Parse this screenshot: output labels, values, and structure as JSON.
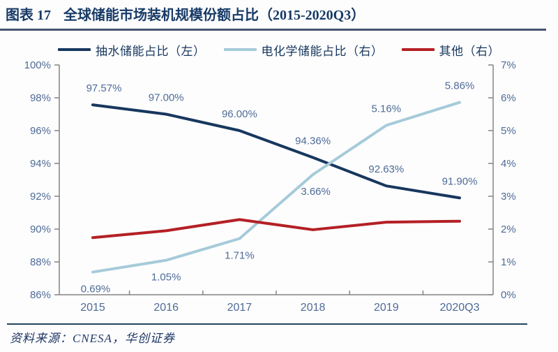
{
  "header": {
    "figure_number": "图表 17",
    "title": "全球储能市场装机规模份额占比（2015-2020Q3）"
  },
  "legend": [
    {
      "id": "pumped-hydro",
      "label": "抽水储能占比（左）",
      "color": "#17375e"
    },
    {
      "id": "electrochemical",
      "label": "电化学储能占比（右）",
      "color": "#a6cbd9"
    },
    {
      "id": "other",
      "label": "其他（右）",
      "color": "#b42025"
    }
  ],
  "footer": {
    "source_note": "资料来源：CNESA，华创证券"
  },
  "chart_data": {
    "type": "line",
    "title": "全球储能市场装机规模份额占比（2015-2020Q3）",
    "categories": [
      "2015",
      "2016",
      "2017",
      "2018",
      "2019",
      "2020Q3"
    ],
    "grid": false,
    "legend_position": "top",
    "left_axis": {
      "min": 86,
      "max": 100,
      "tick_values": [
        100,
        98,
        96,
        94,
        92,
        90,
        88,
        86
      ],
      "tick_labels": [
        "100%",
        "98%",
        "96%",
        "94%",
        "92%",
        "90%",
        "88%",
        "86%"
      ]
    },
    "right_axis": {
      "min": 0,
      "max": 7,
      "tick_values": [
        7,
        6,
        5,
        4,
        3,
        2,
        1,
        0
      ],
      "tick_labels": [
        "7%",
        "6%",
        "5%",
        "4%",
        "3%",
        "2%",
        "1%",
        "0%"
      ]
    },
    "series": [
      {
        "id": "pumped-hydro",
        "name": "抽水储能占比（左）",
        "axis": "left",
        "color": "#17375e",
        "values": [
          97.57,
          97.0,
          96.0,
          94.36,
          92.63,
          91.9
        ],
        "labels": [
          "97.57%",
          "97.00%",
          "96.00%",
          "94.36%",
          "92.63%",
          "91.90%"
        ],
        "label_side": [
          "above",
          "above",
          "above",
          "above",
          "above",
          "above"
        ],
        "label_dx": [
          16,
          0,
          0,
          0,
          0,
          0
        ]
      },
      {
        "id": "electrochemical",
        "name": "电化学储能占比（右）",
        "axis": "right",
        "color": "#a6cbd9",
        "values": [
          0.69,
          1.05,
          1.71,
          3.66,
          5.16,
          5.86
        ],
        "labels": [
          "0.69%",
          "1.05%",
          "1.71%",
          "3.66%",
          "5.16%",
          "5.86%"
        ],
        "label_side": [
          "below",
          "below",
          "below",
          "below",
          "above",
          "above"
        ],
        "label_dx": [
          4,
          0,
          0,
          4,
          0,
          0
        ]
      },
      {
        "id": "other",
        "name": "其他（右）",
        "axis": "right",
        "color": "#b42025",
        "values": [
          1.74,
          1.95,
          2.29,
          1.98,
          2.21,
          2.24
        ],
        "labels": [],
        "label_side": [],
        "label_dx": []
      }
    ],
    "text_color": "#4e6b96",
    "axis_color": "#848484"
  }
}
